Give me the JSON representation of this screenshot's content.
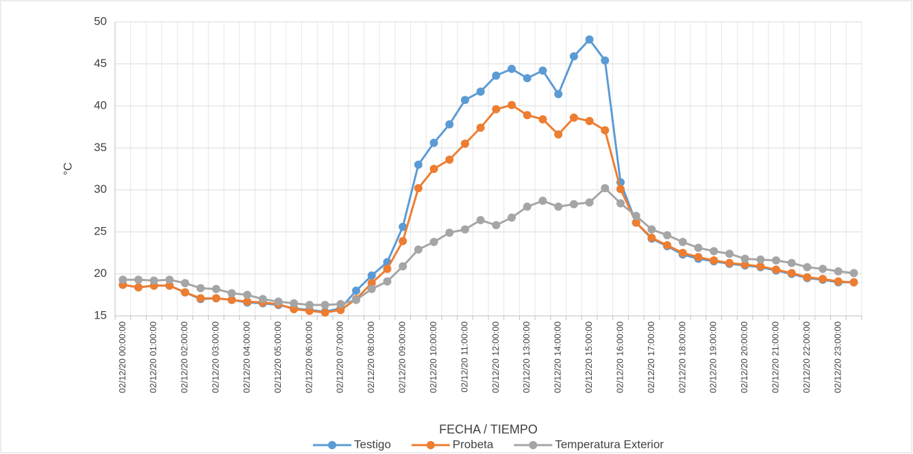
{
  "chart_data": {
    "type": "line",
    "x_label": "FECHA / TIEMPO",
    "y_label": "°C",
    "categories": [
      "02/12/20 00:00:00",
      null,
      "02/12/20 01:00:00",
      null,
      "02/12/20 02:00:00",
      null,
      "02/12/20 03:00:00",
      null,
      "02/12/20 04:00:00",
      null,
      "02/12/20 05:00:00",
      null,
      "02/12/20 06:00:00",
      null,
      "02/12/20 07:00:00",
      null,
      "02/12/20 08:00:00",
      null,
      "02/12/20 09:00:00",
      null,
      "02/12/20 10:00:00",
      null,
      "02/12/20 11:00:00",
      null,
      "02/12/20 12:00:00",
      null,
      "02/12/20 13:00:00",
      null,
      "02/12/20 14:00:00",
      null,
      "02/12/20 15:00:00",
      null,
      "02/12/20 16:00:00",
      null,
      "02/12/20 17:00:00",
      null,
      "02/12/20 18:00:00",
      null,
      "02/12/20 19:00:00",
      null,
      "02/12/20 20:00:00",
      null,
      "02/12/20 21:00:00",
      null,
      "02/12/20 22:00:00",
      null,
      "02/12/20 23:00:00",
      null
    ],
    "series": [
      {
        "name": "Testigo",
        "color": "#5b9bd5",
        "values": [
          18.7,
          18.4,
          18.6,
          18.6,
          17.8,
          17.0,
          17.1,
          16.9,
          16.6,
          16.5,
          16.3,
          15.9,
          15.7,
          15.5,
          15.9,
          18.0,
          19.8,
          21.4,
          25.6,
          33.0,
          35.6,
          37.8,
          40.7,
          41.7,
          43.6,
          44.4,
          43.3,
          44.2,
          41.4,
          45.9,
          47.9,
          45.4,
          30.9,
          26.1,
          24.2,
          23.3,
          22.3,
          21.8,
          21.5,
          21.2,
          21.0,
          20.8,
          20.4,
          20.0,
          19.5,
          19.3,
          19.0,
          19.0
        ]
      },
      {
        "name": "Probeta",
        "color": "#ed7d31",
        "values": [
          18.7,
          18.4,
          18.6,
          18.6,
          17.8,
          17.1,
          17.1,
          16.9,
          16.7,
          16.6,
          16.4,
          15.8,
          15.6,
          15.4,
          15.7,
          17.0,
          18.9,
          20.6,
          23.9,
          30.2,
          32.5,
          33.6,
          35.5,
          37.4,
          39.6,
          40.1,
          38.9,
          38.4,
          36.6,
          38.6,
          38.2,
          37.1,
          30.1,
          26.1,
          24.3,
          23.4,
          22.5,
          22.0,
          21.6,
          21.3,
          21.1,
          20.9,
          20.5,
          20.1,
          19.6,
          19.4,
          19.1,
          19.0
        ]
      },
      {
        "name": "Temperatura Exterior",
        "color": "#a5a5a5",
        "values": [
          19.3,
          19.3,
          19.2,
          19.3,
          18.9,
          18.3,
          18.2,
          17.7,
          17.5,
          17.0,
          16.7,
          16.5,
          16.3,
          16.3,
          16.4,
          16.9,
          18.2,
          19.1,
          20.9,
          22.9,
          23.8,
          24.9,
          25.3,
          26.4,
          25.8,
          26.7,
          28.0,
          28.7,
          28.0,
          28.3,
          28.5,
          30.2,
          28.4,
          26.9,
          25.3,
          24.6,
          23.8,
          23.1,
          22.7,
          22.4,
          21.8,
          21.7,
          21.6,
          21.3,
          20.8,
          20.6,
          20.3,
          20.1
        ]
      }
    ],
    "ylim": [
      15,
      50
    ],
    "yticks": [
      15,
      20,
      25,
      30,
      35,
      40,
      45,
      50
    ],
    "grid": true,
    "legend": "bottom"
  }
}
